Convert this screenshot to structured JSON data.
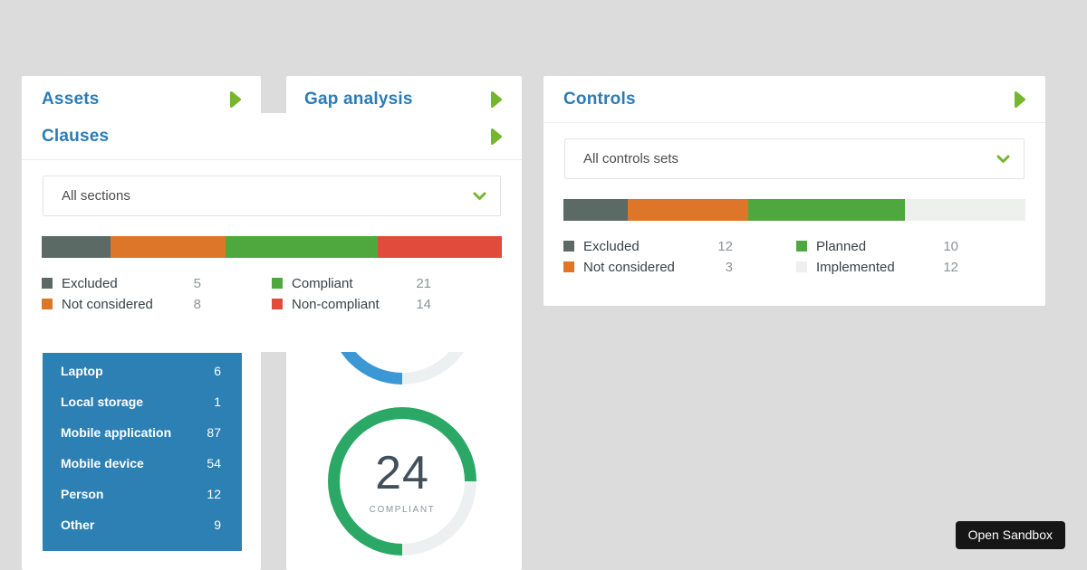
{
  "page": {
    "background_color": "#dcdcdc",
    "accent_blue": "#2b7cb5",
    "accent_green": "#74b72d",
    "card_color": "#ffffff"
  },
  "cards": {
    "assets": {
      "title": "Assets",
      "table": {
        "background_color": "#2c80b4",
        "rows": [
          {
            "label": "Laptop",
            "value": "6"
          },
          {
            "label": "Local storage",
            "value": "1"
          },
          {
            "label": "Mobile application",
            "value": "87"
          },
          {
            "label": "Mobile device",
            "value": "54"
          },
          {
            "label": "Person",
            "value": "12"
          },
          {
            "label": "Other",
            "value": "9"
          }
        ]
      }
    },
    "clauses": {
      "title": "Clauses",
      "dropdown_value": "All sections"
    },
    "gap_analysis": {
      "title": "Gap analysis"
    },
    "controls": {
      "title": "Controls",
      "dropdown_value": "All controls sets"
    }
  },
  "sandbox_button": {
    "label": "Open Sandbox"
  },
  "chart_data": [
    {
      "type": "stacked_bar",
      "title": "Clauses status",
      "note": "rendered segment widths do not match values proportionally; measured from screenshot",
      "segments": [
        {
          "label": "Excluded",
          "value": 5,
          "color": "#5c6a66",
          "width_pct": 15
        },
        {
          "label": "Not considered",
          "value": 8,
          "color": "#dd7628",
          "width_pct": 25
        },
        {
          "label": "Compliant",
          "value": 21,
          "color": "#4fa83d",
          "width_pct": 33
        },
        {
          "label": "Non-compliant",
          "value": 14,
          "color": "#e14b3c",
          "width_pct": 27
        }
      ],
      "legend_position": "below, two columns"
    },
    {
      "type": "stacked_bar",
      "title": "Controls status",
      "note": "rendered segment widths do not match values proportionally; measured from screenshot",
      "segments": [
        {
          "label": "Excluded",
          "value": 12,
          "color": "#5c6a66",
          "width_pct": 14
        },
        {
          "label": "Not considered",
          "value": 3,
          "color": "#dd7628",
          "width_pct": 26
        },
        {
          "label": "Planned",
          "value": 10,
          "color": "#4fa83d",
          "width_pct": 34
        },
        {
          "label": "Implemented",
          "value": 12,
          "color": "#eef0ee",
          "width_pct": 26
        }
      ],
      "legend_position": "below, two columns"
    },
    {
      "type": "donut",
      "title": "Gap analysis - compliant",
      "value": "24",
      "caption": "COMPLIANT",
      "percent_filled": 75,
      "sweep_deg": 270,
      "start": "bottom, clockwise",
      "color": "#2ba766",
      "track_color": "#edf0f1"
    },
    {
      "type": "donut",
      "title": "Gap analysis - upper donut (partially hidden behind Clauses card, only bottom arc visible)",
      "color": "#3b98d4",
      "track_color": "#edf0f1",
      "visible": "blue arc bottom-left quadrant, gray track bottom-right quadrant"
    }
  ]
}
